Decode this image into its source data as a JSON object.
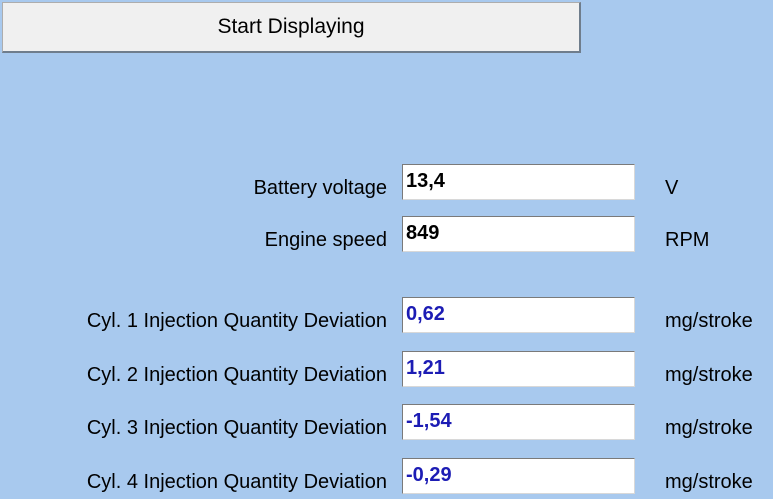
{
  "start_button": "Start Displaying",
  "colors": {
    "background": "#a8c9ee",
    "deviation_value": "#1c1cb4"
  },
  "rows": [
    {
      "label": "Battery voltage",
      "value": "13,4",
      "unit": "V"
    },
    {
      "label": "Engine speed",
      "value": "849",
      "unit": "RPM"
    },
    {
      "label": "Cyl. 1 Injection Quantity Deviation",
      "value": "0,62",
      "unit": "mg/stroke"
    },
    {
      "label": "Cyl. 2 Injection Quantity Deviation",
      "value": "1,21",
      "unit": "mg/stroke"
    },
    {
      "label": "Cyl. 3 Injection Quantity Deviation",
      "value": "-1,54",
      "unit": "mg/stroke"
    },
    {
      "label": "Cyl. 4 Injection Quantity Deviation",
      "value": "-0,29",
      "unit": "mg/stroke"
    }
  ]
}
